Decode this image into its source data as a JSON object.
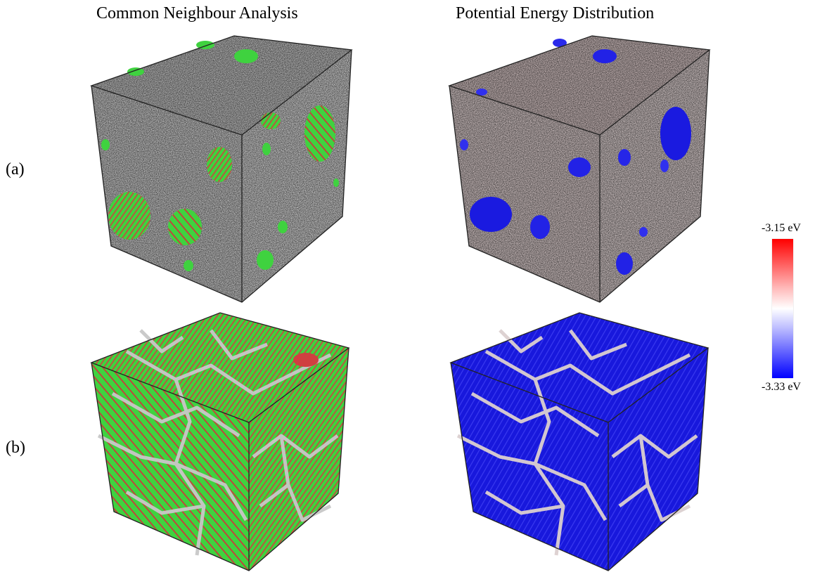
{
  "columns": {
    "left_title": "Common Neighbour Analysis",
    "right_title": "Potential Energy Distribution"
  },
  "rows": {
    "a_label": "(a)",
    "b_label": "(b)"
  },
  "colorbar": {
    "max_label": "-3.15 eV",
    "min_label": "-3.33 eV",
    "max_color": "#ff0000",
    "mid_color": "#ffffff",
    "min_color": "#0000ff"
  },
  "colors": {
    "amorphous": "#c8c8c8",
    "fcc": "#3fd23f",
    "hcp": "#d04040",
    "low_energy": "#1a1ae0",
    "edge": "#222222"
  }
}
